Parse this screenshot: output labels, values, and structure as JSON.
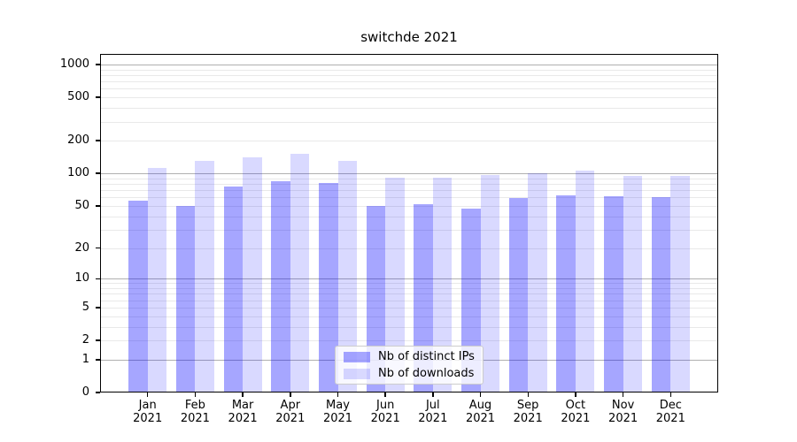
{
  "title": "switchde 2021",
  "chart_data": {
    "type": "bar",
    "title": "switchde 2021",
    "categories": [
      "Jan 2021",
      "Feb 2021",
      "Mar 2021",
      "Apr 2021",
      "May 2021",
      "Jun 2021",
      "Jul 2021",
      "Aug 2021",
      "Sep 2021",
      "Oct 2021",
      "Nov 2021",
      "Dec 2021"
    ],
    "series": [
      {
        "name": "Nb of distinct IPs",
        "color": "#0000ff",
        "alpha": 0.35,
        "values": [
          56,
          50,
          75,
          85,
          81,
          50,
          52,
          47,
          59,
          63,
          62,
          60
        ]
      },
      {
        "name": "Nb of downloads",
        "color": "#0000ff",
        "alpha": 0.15,
        "values": [
          113,
          130,
          140,
          152,
          130,
          92,
          92,
          97,
          101,
          107,
          94,
          95
        ]
      }
    ],
    "xlabel": "",
    "ylabel": "",
    "yscale": "log1p",
    "ylim": [
      0,
      1250
    ],
    "yticks": [
      0,
      1,
      2,
      5,
      10,
      20,
      50,
      100,
      200,
      500,
      1000
    ],
    "grid": {
      "major_values": [
        1,
        10,
        100,
        1000
      ],
      "minor_values": [
        2,
        3,
        4,
        5,
        6,
        7,
        8,
        9,
        20,
        30,
        40,
        50,
        60,
        70,
        80,
        90,
        200,
        300,
        400,
        500,
        600,
        700,
        800,
        900
      ],
      "major_color": "#b0b0b0",
      "minor_color": "#e9e9e9"
    },
    "legend_position": "lower center"
  }
}
